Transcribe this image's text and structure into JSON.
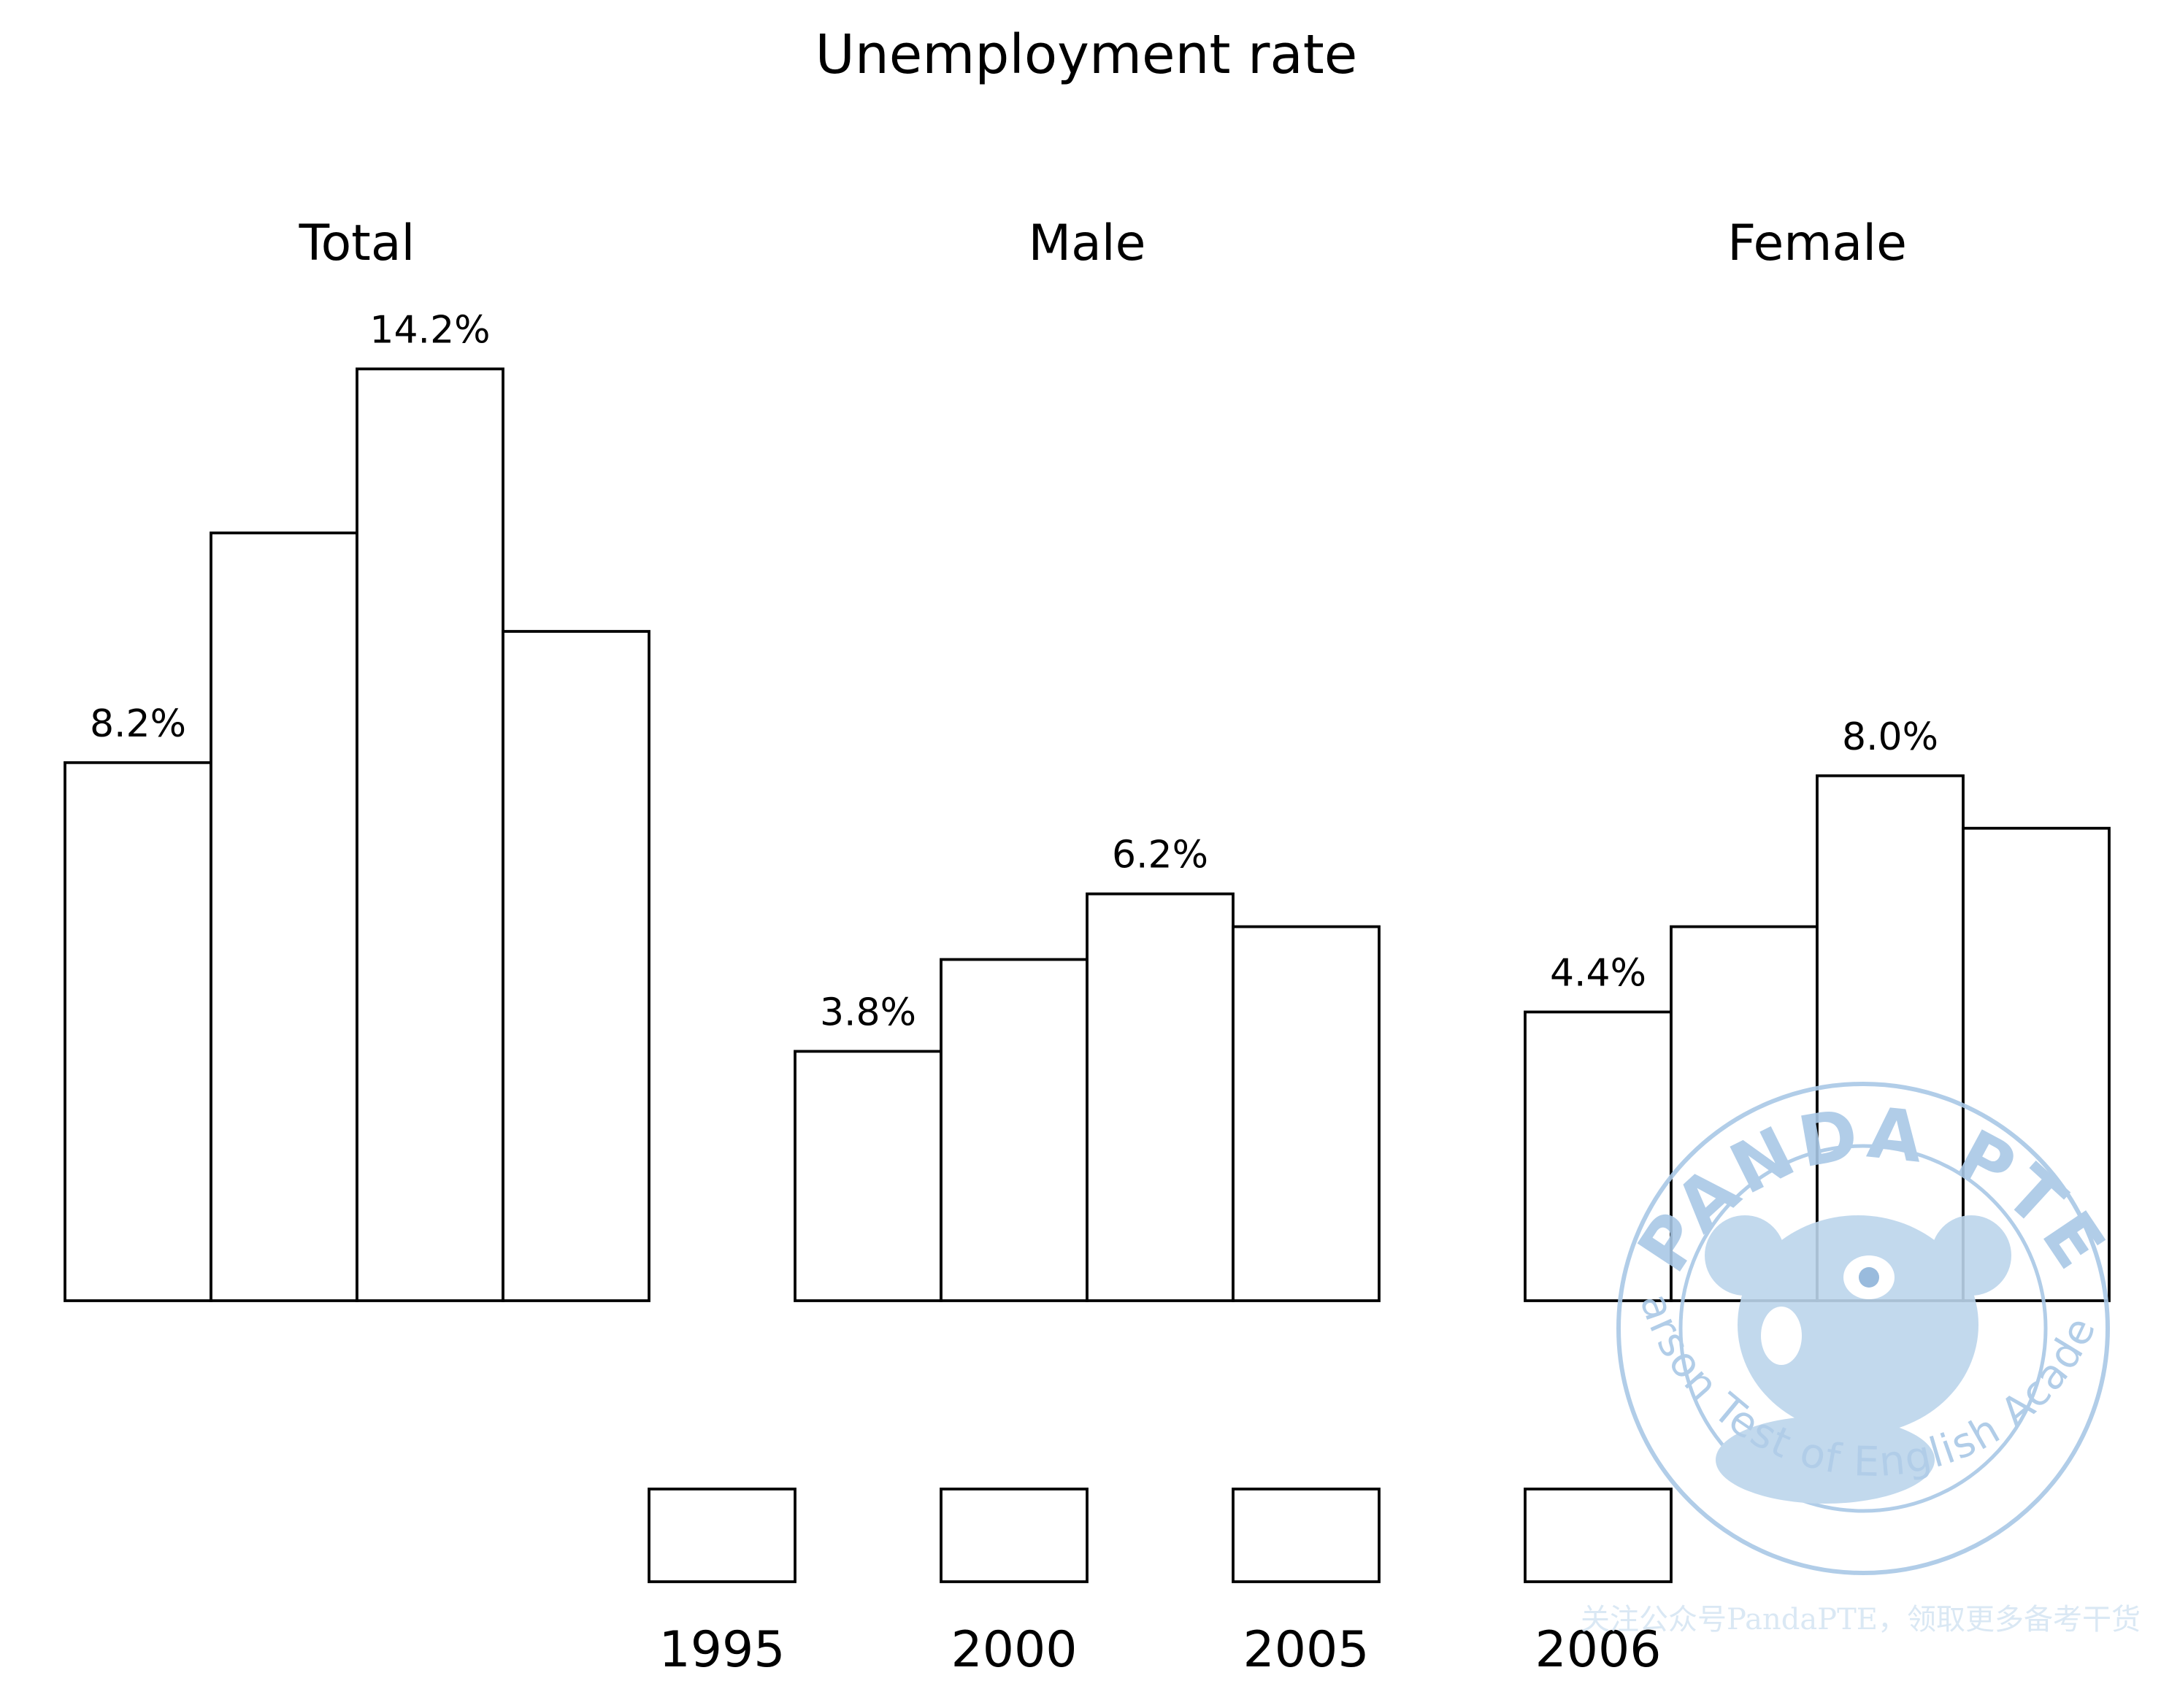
{
  "chart_data": {
    "type": "bar",
    "title": "Unemployment rate",
    "categories": [
      "1995",
      "2000",
      "2005",
      "2006"
    ],
    "panels": [
      {
        "name": "Total",
        "values": [
          8.2,
          11.7,
          14.2,
          10.2
        ],
        "labels": {
          "0": "8.2%",
          "2": "14.2%"
        }
      },
      {
        "name": "Male",
        "values": [
          3.8,
          5.2,
          6.2,
          5.7
        ],
        "labels": {
          "0": "3.8%",
          "2": "6.2%"
        }
      },
      {
        "name": "Female",
        "values": [
          4.4,
          5.7,
          8.0,
          7.2
        ],
        "labels": {
          "0": "4.4%",
          "2": "8.0%"
        }
      }
    ],
    "bar_fill": "#ffffff",
    "bar_stroke": "#000000",
    "legend": {
      "position": "bottom",
      "entries": [
        "1995",
        "2000",
        "2005",
        "2006"
      ]
    },
    "grid": false,
    "axes_visible": false
  },
  "watermark": {
    "top_text": "PANDA PTE",
    "ring_text": "Pearson Test of English Academic",
    "footer_text": "关注公众号PandaPTE，领取更多备考干货",
    "color": "#a9c8e6"
  }
}
